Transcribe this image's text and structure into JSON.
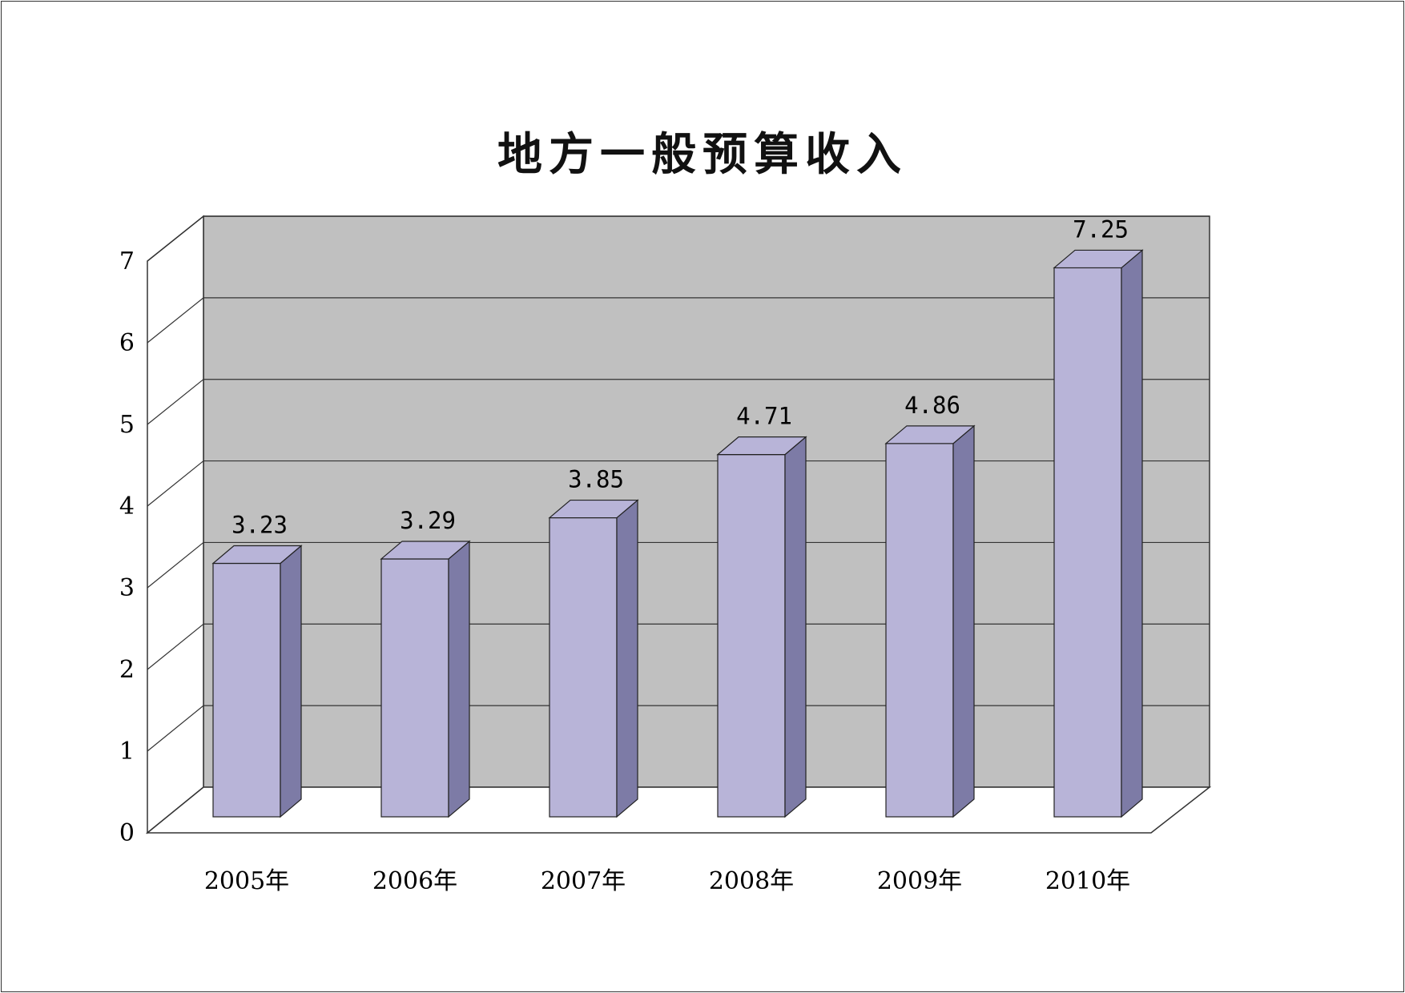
{
  "chart_data": {
    "type": "bar",
    "title": "地方一般预算收入",
    "categories": [
      "2005年",
      "2006年",
      "2007年",
      "2008年",
      "2009年",
      "2010年"
    ],
    "values": [
      3.23,
      3.29,
      3.85,
      4.71,
      4.86,
      7.25
    ],
    "data_labels": [
      "3.23",
      "3.29",
      "3.85",
      "4.71",
      "4.86",
      "7.25"
    ],
    "yticks": [
      "0",
      "1",
      "2",
      "3",
      "4",
      "5",
      "6",
      "7"
    ],
    "ylim": [
      0,
      7
    ],
    "grid": true,
    "legend": "none",
    "colors": {
      "bar_front": "#b8b4d8",
      "bar_side": "#7d7ba6",
      "bar_top": "#b8b4d8",
      "back_wall": "#c0c0c0",
      "gridline": "#333333"
    }
  }
}
